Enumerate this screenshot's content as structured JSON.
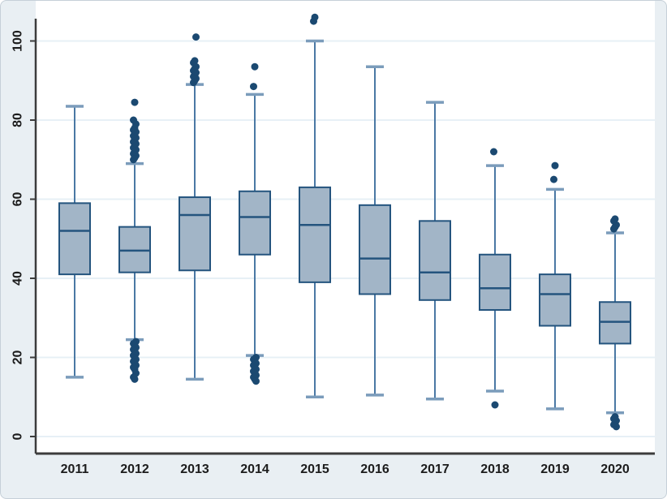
{
  "chart_data": {
    "type": "box",
    "title": "",
    "xlabel": "",
    "ylabel": "",
    "categories": [
      "2011",
      "2012",
      "2013",
      "2014",
      "2015",
      "2016",
      "2017",
      "2018",
      "2019",
      "2020"
    ],
    "y_ticks": [
      0,
      20,
      40,
      60,
      80,
      100
    ],
    "ylim": [
      -4.5,
      110
    ],
    "grid": "horizontal",
    "legend": "none",
    "series": [
      {
        "year": "2011",
        "whisker_low": 15,
        "q1": 41,
        "median": 52,
        "q3": 59,
        "whisker_high": 83.5,
        "outliers_high": [],
        "outliers_low": []
      },
      {
        "year": "2012",
        "whisker_low": 24.5,
        "q1": 41.5,
        "median": 47,
        "q3": 53,
        "whisker_high": 69,
        "outliers_high": [
          70,
          70.5,
          71,
          71.5,
          72,
          72.5,
          73,
          73.5,
          74,
          74.5,
          75,
          75.5,
          76,
          76.5,
          77,
          77.5,
          78,
          79,
          80,
          84.5
        ],
        "outliers_low": [
          24,
          23.5,
          23,
          22.5,
          22,
          21.5,
          21,
          20.5,
          20,
          19.5,
          19,
          18.5,
          18,
          17.5,
          17,
          16,
          15,
          14.5
        ]
      },
      {
        "year": "2013",
        "whisker_low": 14.5,
        "q1": 42,
        "median": 56,
        "q3": 60.5,
        "whisker_high": 89,
        "outliers_high": [
          89.5,
          90,
          90.5,
          91,
          91.5,
          92,
          92.5,
          93,
          93.5,
          94.5,
          95,
          101
        ],
        "outliers_low": []
      },
      {
        "year": "2014",
        "whisker_low": 20.5,
        "q1": 46,
        "median": 55.5,
        "q3": 62,
        "whisker_high": 86.5,
        "outliers_high": [
          88.5,
          93.5
        ],
        "outliers_low": [
          20,
          19.5,
          19,
          18.5,
          18,
          17.5,
          17,
          16.5,
          16,
          15.5,
          15,
          14.5,
          14
        ]
      },
      {
        "year": "2015",
        "whisker_low": 10,
        "q1": 39,
        "median": 53.5,
        "q3": 63,
        "whisker_high": 100,
        "outliers_high": [
          105,
          106
        ],
        "outliers_low": []
      },
      {
        "year": "2016",
        "whisker_low": 10.5,
        "q1": 36,
        "median": 45,
        "q3": 58.5,
        "whisker_high": 93.5,
        "outliers_high": [],
        "outliers_low": []
      },
      {
        "year": "2017",
        "whisker_low": 9.5,
        "q1": 34.5,
        "median": 41.5,
        "q3": 54.5,
        "whisker_high": 84.5,
        "outliers_high": [],
        "outliers_low": []
      },
      {
        "year": "2018",
        "whisker_low": 11.5,
        "q1": 32,
        "median": 37.5,
        "q3": 46,
        "whisker_high": 68.5,
        "outliers_high": [
          72
        ],
        "outliers_low": [
          8
        ]
      },
      {
        "year": "2019",
        "whisker_low": 7,
        "q1": 28,
        "median": 36,
        "q3": 41,
        "whisker_high": 62.5,
        "outliers_high": [
          65,
          68.5
        ],
        "outliers_low": []
      },
      {
        "year": "2020",
        "whisker_low": 6,
        "q1": 23.5,
        "median": 29,
        "q3": 34,
        "whisker_high": 51.5,
        "outliers_high": [
          52.5,
          53,
          53.5,
          54.5,
          55
        ],
        "outliers_low": [
          2.5,
          3,
          3.5,
          4,
          4.5,
          5
        ]
      }
    ],
    "colors": {
      "outer_background": "#e9eff3",
      "plot_background": "#ffffff",
      "gridline": "#e7f0f6",
      "axis_line": "#3c3c3c",
      "tick_label": "#1c1c1c",
      "box_fill": "#a2b5c7",
      "box_border": "#24547e",
      "median_line": "#24547e",
      "whisker_line": "#4a78a4",
      "whisker_cap": "#7b9cbb",
      "outlier_dot": "#1b4971"
    }
  }
}
